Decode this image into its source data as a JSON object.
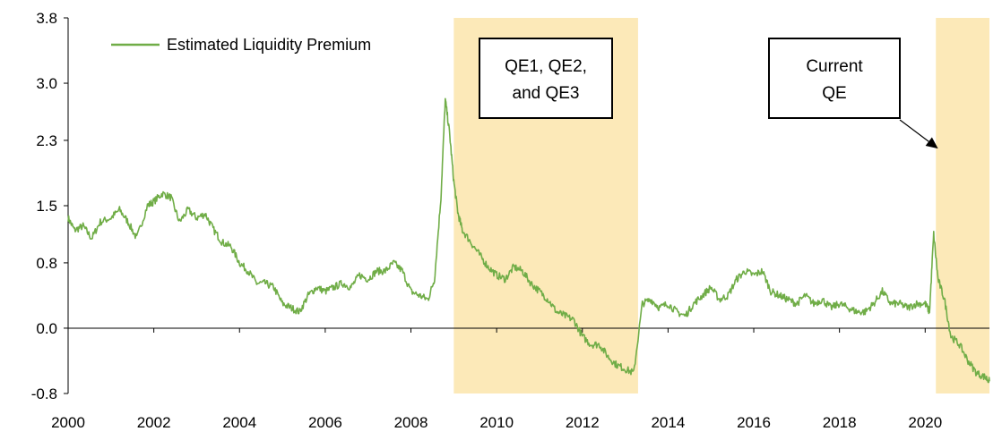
{
  "chart_data": {
    "type": "line",
    "title": "",
    "xlabel": "",
    "ylabel": "",
    "xlim": [
      2000,
      2021.5
    ],
    "ylim": [
      -0.8,
      3.8
    ],
    "y_ticks": [
      "3.8",
      "3.0",
      "2.3",
      "1.5",
      "0.8",
      "0.0",
      "-0.8"
    ],
    "y_tick_values": [
      3.8,
      3.0,
      2.3,
      1.5,
      0.8,
      0.0,
      -0.8
    ],
    "x_ticks": [
      "2000",
      "2002",
      "2004",
      "2006",
      "2008",
      "2010",
      "2012",
      "2014",
      "2016",
      "2018",
      "2020"
    ],
    "x_tick_values": [
      2000,
      2002,
      2004,
      2006,
      2008,
      2010,
      2012,
      2014,
      2016,
      2018,
      2020
    ],
    "grid": false,
    "zero_line": true,
    "legend": {
      "placement": "top-left",
      "entries": [
        "Estimated Liquidity Premium"
      ]
    },
    "series": [
      {
        "name": "Estimated Liquidity Premium",
        "color": "#70ad47",
        "x": [
          2000.0,
          2000.15,
          2000.35,
          2000.55,
          2000.75,
          2001.0,
          2001.2,
          2001.4,
          2001.6,
          2001.85,
          2002.0,
          2002.2,
          2002.4,
          2002.6,
          2002.8,
          2003.0,
          2003.2,
          2003.4,
          2003.6,
          2003.8,
          2004.0,
          2004.2,
          2004.4,
          2004.6,
          2004.8,
          2005.0,
          2005.2,
          2005.4,
          2005.6,
          2005.8,
          2006.0,
          2006.2,
          2006.4,
          2006.6,
          2006.8,
          2007.0,
          2007.2,
          2007.4,
          2007.6,
          2007.8,
          2008.0,
          2008.2,
          2008.4,
          2008.55,
          2008.7,
          2008.8,
          2008.9,
          2009.0,
          2009.1,
          2009.2,
          2009.4,
          2009.6,
          2009.8,
          2010.0,
          2010.2,
          2010.4,
          2010.6,
          2010.8,
          2011.0,
          2011.2,
          2011.4,
          2011.6,
          2011.8,
          2012.0,
          2012.2,
          2012.4,
          2012.6,
          2012.8,
          2013.0,
          2013.2,
          2013.4,
          2013.6,
          2013.8,
          2014.0,
          2014.2,
          2014.4,
          2014.6,
          2014.8,
          2015.0,
          2015.2,
          2015.4,
          2015.6,
          2015.8,
          2016.0,
          2016.2,
          2016.4,
          2016.6,
          2016.8,
          2017.0,
          2017.2,
          2017.4,
          2017.6,
          2017.8,
          2018.0,
          2018.2,
          2018.4,
          2018.6,
          2018.8,
          2019.0,
          2019.2,
          2019.4,
          2019.6,
          2019.8,
          2020.0,
          2020.1,
          2020.2,
          2020.3,
          2020.45,
          2020.6,
          2020.8,
          2021.0,
          2021.2,
          2021.4,
          2021.5
        ],
        "values": [
          1.35,
          1.2,
          1.25,
          1.1,
          1.3,
          1.35,
          1.45,
          1.3,
          1.1,
          1.5,
          1.55,
          1.65,
          1.6,
          1.3,
          1.45,
          1.35,
          1.4,
          1.2,
          1.05,
          1.0,
          0.8,
          0.7,
          0.55,
          0.55,
          0.5,
          0.3,
          0.25,
          0.2,
          0.4,
          0.5,
          0.45,
          0.5,
          0.55,
          0.5,
          0.65,
          0.6,
          0.7,
          0.7,
          0.8,
          0.7,
          0.45,
          0.4,
          0.35,
          0.6,
          1.6,
          2.8,
          2.4,
          1.8,
          1.4,
          1.2,
          1.05,
          0.9,
          0.75,
          0.65,
          0.6,
          0.75,
          0.7,
          0.55,
          0.45,
          0.35,
          0.2,
          0.15,
          0.1,
          -0.1,
          -0.2,
          -0.2,
          -0.35,
          -0.45,
          -0.5,
          -0.55,
          0.3,
          0.35,
          0.25,
          0.3,
          0.2,
          0.15,
          0.3,
          0.4,
          0.5,
          0.35,
          0.4,
          0.6,
          0.7,
          0.65,
          0.7,
          0.45,
          0.4,
          0.35,
          0.3,
          0.4,
          0.3,
          0.35,
          0.25,
          0.3,
          0.25,
          0.2,
          0.2,
          0.3,
          0.45,
          0.3,
          0.3,
          0.25,
          0.3,
          0.3,
          0.2,
          1.15,
          0.6,
          0.35,
          -0.1,
          -0.2,
          -0.4,
          -0.55,
          -0.6,
          -0.65
        ]
      }
    ],
    "shaded_regions": [
      {
        "x": [
          2009.0,
          2013.3
        ],
        "color": "#fce9b8"
      },
      {
        "x": [
          2020.25,
          2021.5
        ],
        "color": "#fce9b8"
      }
    ],
    "annotations": [
      {
        "lines": [
          "QE1, QE2,",
          "and QE3"
        ]
      },
      {
        "lines": [
          "Current",
          "QE"
        ],
        "arrow_to": {
          "x": 2020.3,
          "y": 2.2
        }
      }
    ]
  }
}
